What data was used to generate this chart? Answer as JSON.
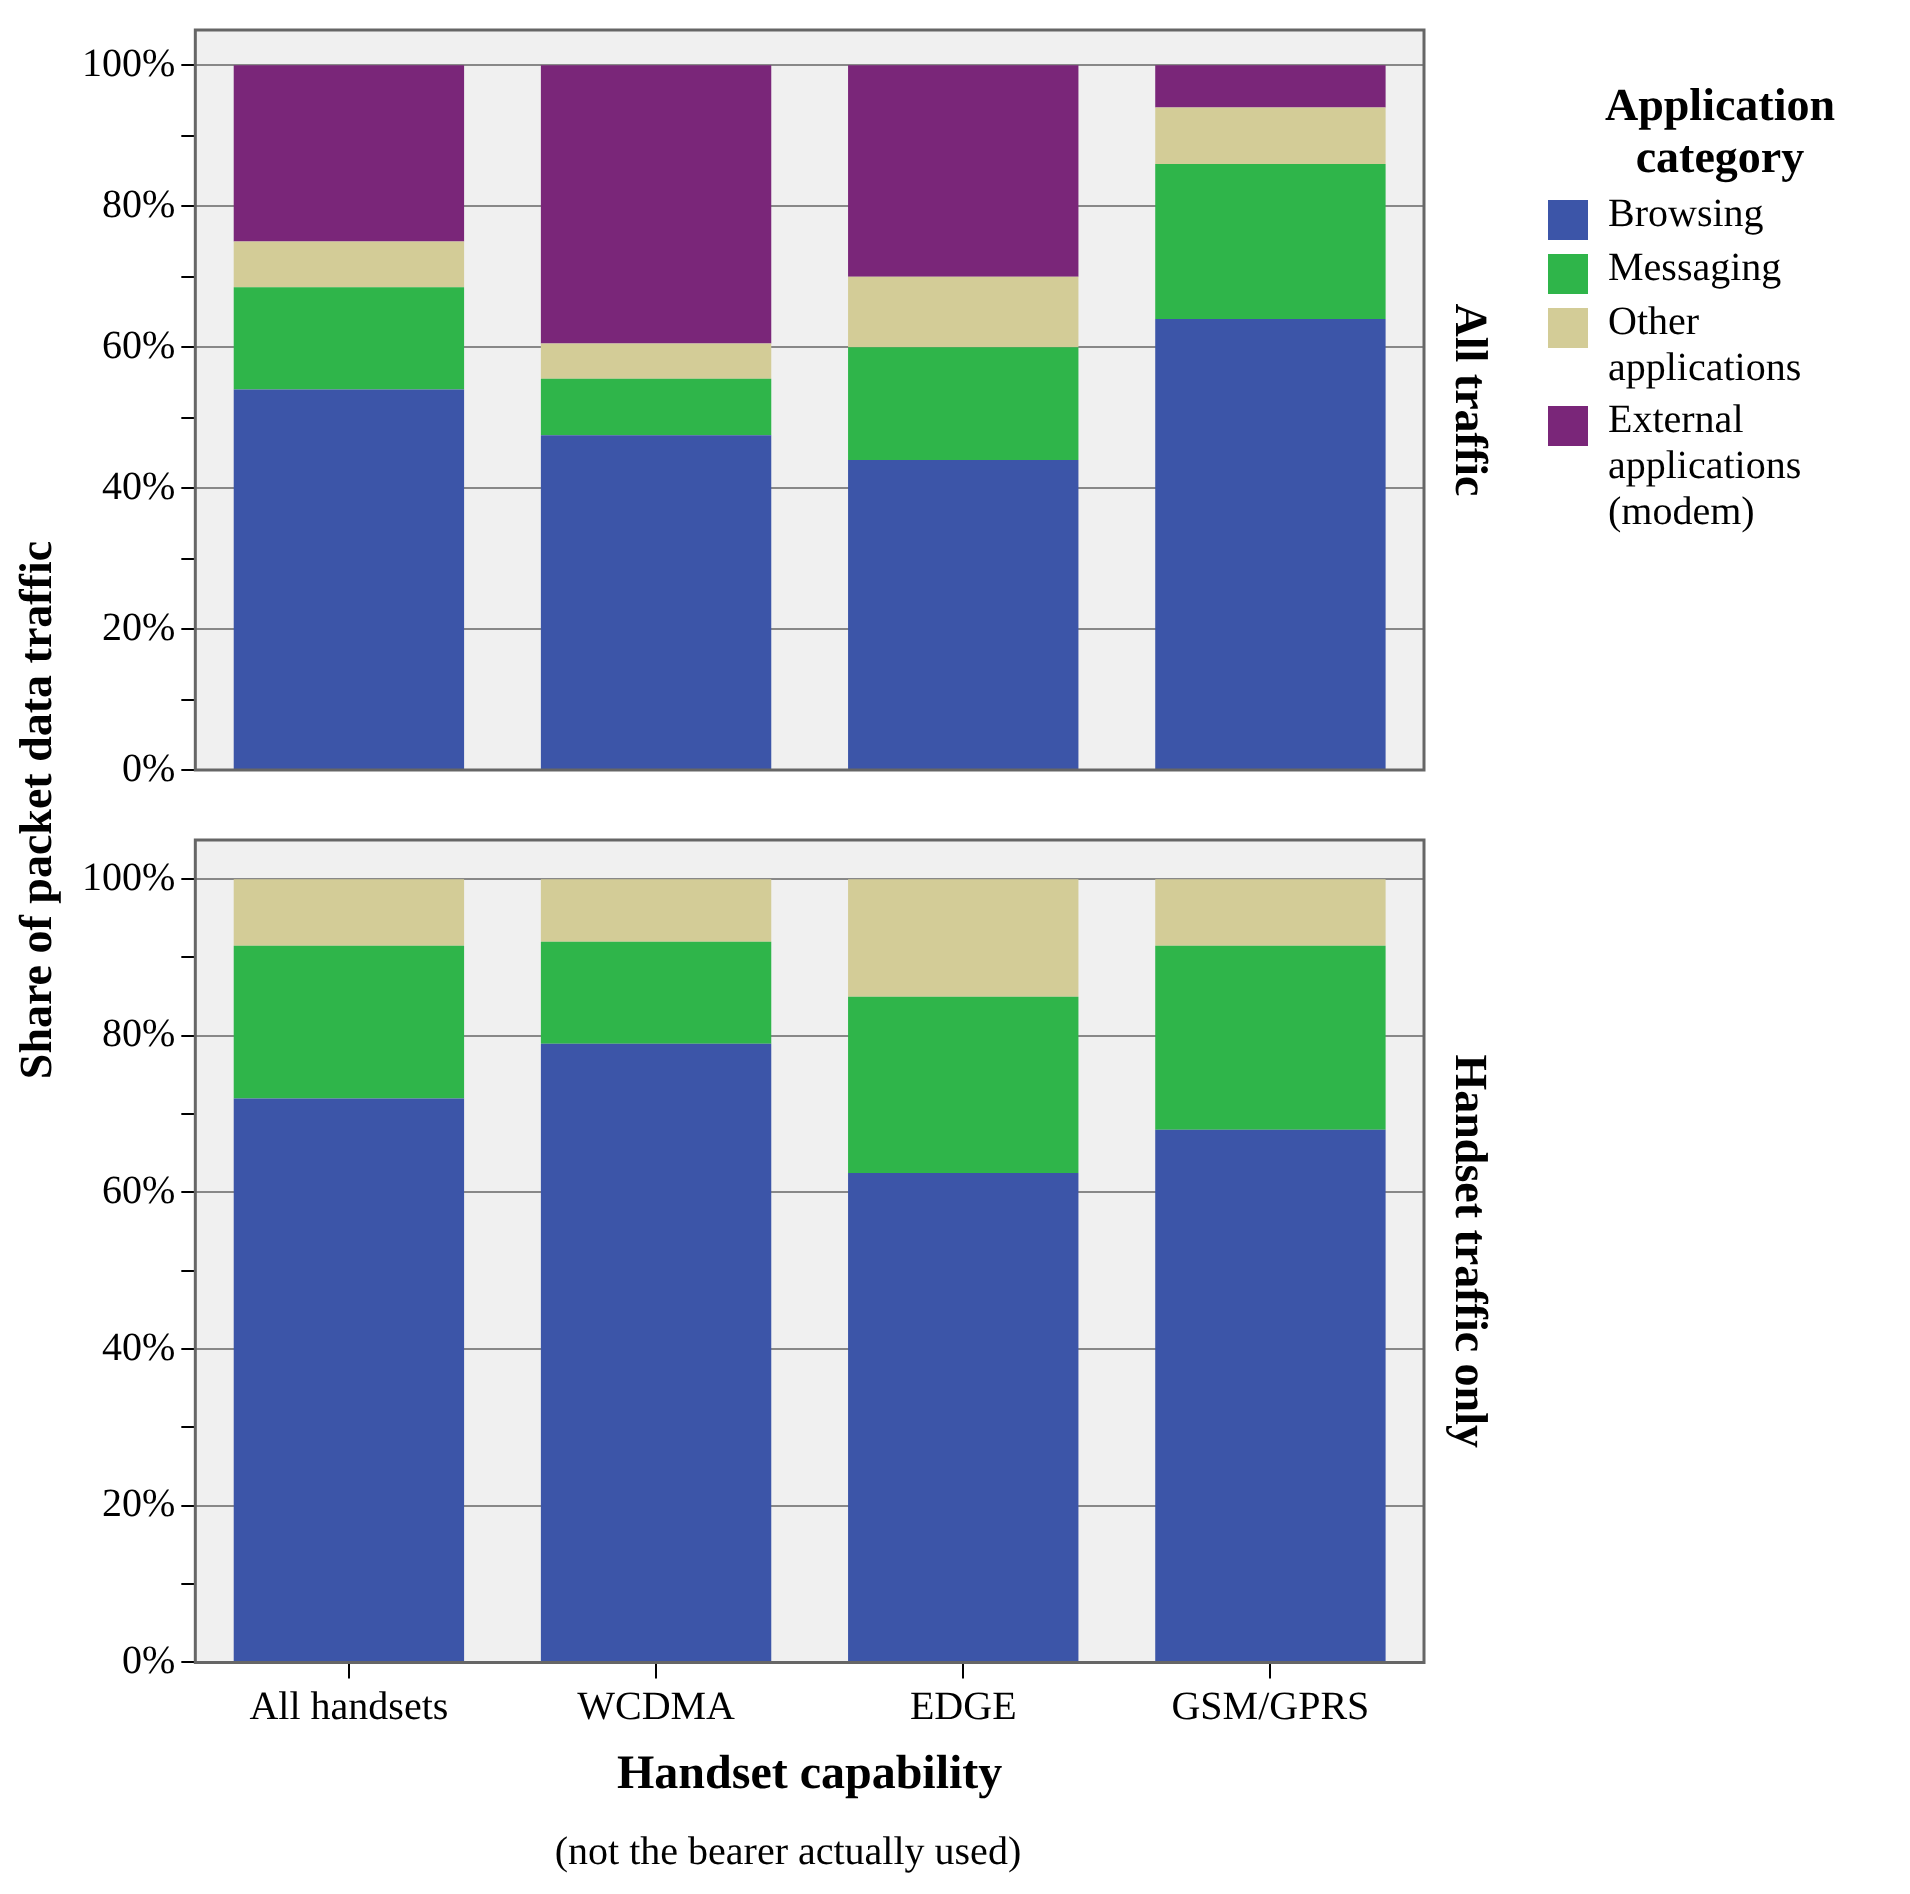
{
  "chart_data": [
    {
      "type": "bar",
      "title": "All traffic",
      "ylabel": "Share of packet data traffic",
      "legend_title": "Application category",
      "legend": "top right",
      "stacked": true,
      "grid": "y",
      "tick_labels": "y",
      "categories": [
        null,
        null,
        null,
        null
      ],
      "ylim": [
        0,
        105
      ],
      "yticks": [
        {
          "value": 0,
          "label": "0%"
        },
        {
          "value": 10,
          "label": null
        },
        {
          "value": 20,
          "label": "20%"
        },
        {
          "value": 30,
          "label": null
        },
        {
          "value": 40,
          "label": "40%"
        },
        {
          "value": 50,
          "label": null
        },
        {
          "value": 60,
          "label": "60%"
        },
        {
          "value": 70,
          "label": null
        },
        {
          "value": 80,
          "label": "80%"
        },
        {
          "value": 90,
          "label": null
        },
        {
          "value": 100,
          "label": "100%"
        }
      ],
      "series": [
        {
          "name": "Browsing",
          "color": "#3c55a8",
          "values": [
            54,
            47.5,
            44,
            64
          ]
        },
        {
          "name": "Messaging",
          "color": "#2fb54a",
          "values": [
            14.5,
            8,
            16,
            22
          ]
        },
        {
          "name": "Other applications",
          "color": "#d3cc97",
          "values": [
            6.5,
            5,
            10,
            8
          ]
        },
        {
          "name": "External applications (modem)",
          "color": "#7a2679",
          "values": [
            25,
            39.5,
            30,
            6
          ]
        }
      ]
    },
    {
      "type": "bar",
      "title": "Handset traffic only",
      "xlabel": "Handset capability",
      "annotations": [
        "(not the bearer actually used)"
      ],
      "stacked": true,
      "grid": "y",
      "categories": [
        "All handsets",
        "WCDMA",
        "EDGE",
        "GSM/GPRS"
      ],
      "ylim": [
        0,
        105
      ],
      "yticks": [
        {
          "value": 0,
          "label": "0%"
        },
        {
          "value": 10,
          "label": null
        },
        {
          "value": 20,
          "label": "20%"
        },
        {
          "value": 30,
          "label": null
        },
        {
          "value": 40,
          "label": "40%"
        },
        {
          "value": 50,
          "label": null
        },
        {
          "value": 60,
          "label": "60%"
        },
        {
          "value": 70,
          "label": null
        },
        {
          "value": 80,
          "label": "80%"
        },
        {
          "value": 90,
          "label": null
        },
        {
          "value": 100,
          "label": "100%"
        }
      ],
      "series": [
        {
          "color": "#3c55a8",
          "values": [
            72,
            79,
            62.5,
            68
          ]
        },
        {
          "color": "#2fb54a",
          "values": [
            19.5,
            13,
            22.5,
            23.5
          ]
        },
        {
          "color": "#d3cc97",
          "values": [
            8.5,
            8,
            15,
            8.5
          ]
        }
      ]
    }
  ]
}
